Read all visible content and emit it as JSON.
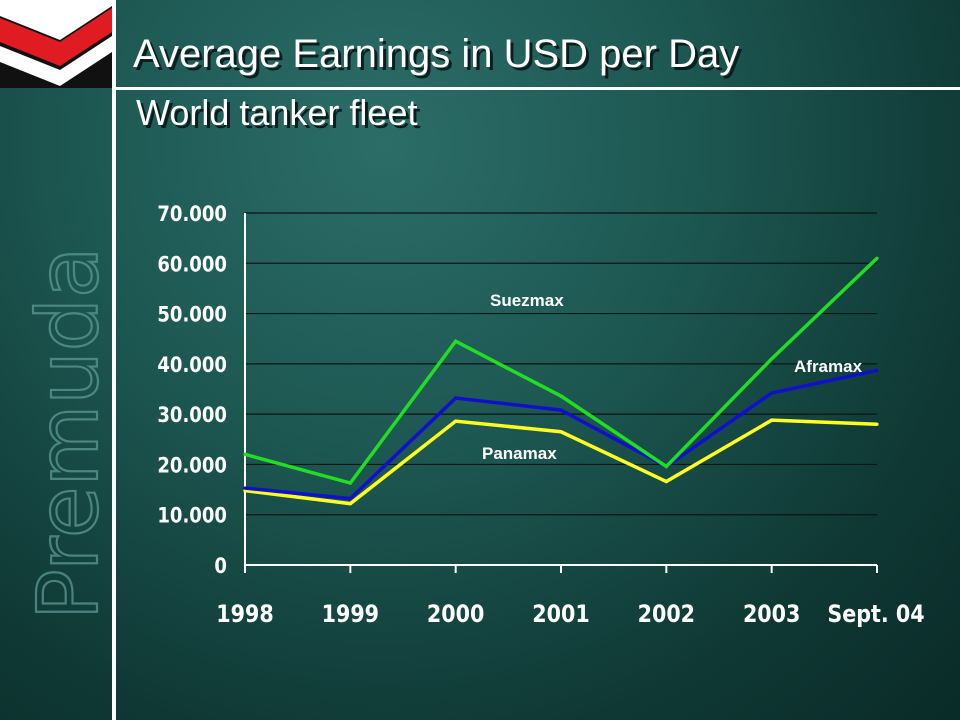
{
  "header": {
    "title": "Average Earnings in USD per Day",
    "subtitle": "World tanker fleet"
  },
  "brand": {
    "watermark": "Premuda"
  },
  "colors": {
    "background": "#1d5752",
    "suezmax": "#22dd22",
    "aframax": "#1010cc",
    "panamax": "#ffff22",
    "logo_red": "#e11b22",
    "logo_white": "#ffffff"
  },
  "chart_data": {
    "type": "line",
    "title": "Average Earnings in USD per Day",
    "subtitle": "World tanker fleet",
    "categories": [
      "1998",
      "1999",
      "2000",
      "2001",
      "2002",
      "2003",
      "Sept. 04"
    ],
    "ylim": [
      0,
      70000
    ],
    "yticks": [
      "0",
      "10.000",
      "20.000",
      "30.000",
      "40.000",
      "50.000",
      "60.000",
      "70.000"
    ],
    "grid": true,
    "series": [
      {
        "name": "Suezmax",
        "color": "#22dd22",
        "values": [
          22000,
          16300,
          44500,
          33600,
          19600,
          41000,
          61000
        ]
      },
      {
        "name": "Aframax",
        "color": "#1010cc",
        "values": [
          15300,
          13200,
          33200,
          30800,
          19600,
          34200,
          38700
        ]
      },
      {
        "name": "Panamax",
        "color": "#ffff22",
        "values": [
          14800,
          12200,
          28600,
          26500,
          16600,
          28800,
          28000
        ]
      }
    ]
  }
}
